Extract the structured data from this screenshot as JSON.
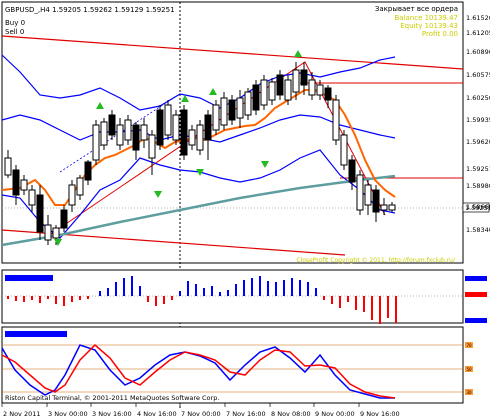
{
  "chart_header": {
    "title": "GBPUSD_,H4 1.59205 1.59262 1.59129 1.59251",
    "buy_label": "Buy 0",
    "sell_label": "Sell 0"
  },
  "account": {
    "close_all": "Закрывает все ордера",
    "balance": "Balance 10139.47",
    "equity": "Equity 10139.43",
    "profit": "Profit 0.00"
  },
  "price_axis": {
    "labels": [
      "1.61520",
      "1.61205",
      "1.60890",
      "1.60575",
      "1.60250",
      "1.59935",
      "1.59620",
      "1.59251",
      "1.58980",
      "1.58660",
      "1.58340"
    ],
    "current_price": "1.59251"
  },
  "time_axis": {
    "labels": [
      "2 Nov 2011",
      "3 Nov 00:00",
      "3 Nov 16:00",
      "4 Nov 16:00",
      "7 Nov 00:00",
      "7 Nov 16:00",
      "8 Nov 08:00",
      "9 Nov 00:00",
      "9 Nov 16:00"
    ]
  },
  "watermark": "CloseProfit Copyright © 2011, http://forum.fxclub.ru/",
  "footer": "Riston Capital Terminal, © 2001-2011 MetaQuotes Software Corp.",
  "indicator_axis_labels": {
    "oscillator": [
      "70",
      "50",
      "30"
    ]
  },
  "colors": {
    "bull_candle": "#000000",
    "bear_candle": "#000000",
    "bollinger": "#0000ff",
    "ma_fast": "#ff6600",
    "ma_slow": "#5f9ea0",
    "channel": "#e00000",
    "arrows": "#22bb22",
    "histogram_up": "#0000ff",
    "histogram_down": "#ff0000",
    "stoch_main": "#0000ff",
    "stoch_signal": "#ff0000",
    "current_price_bg": "#ffffff",
    "account_text": "#cccc00"
  }
}
